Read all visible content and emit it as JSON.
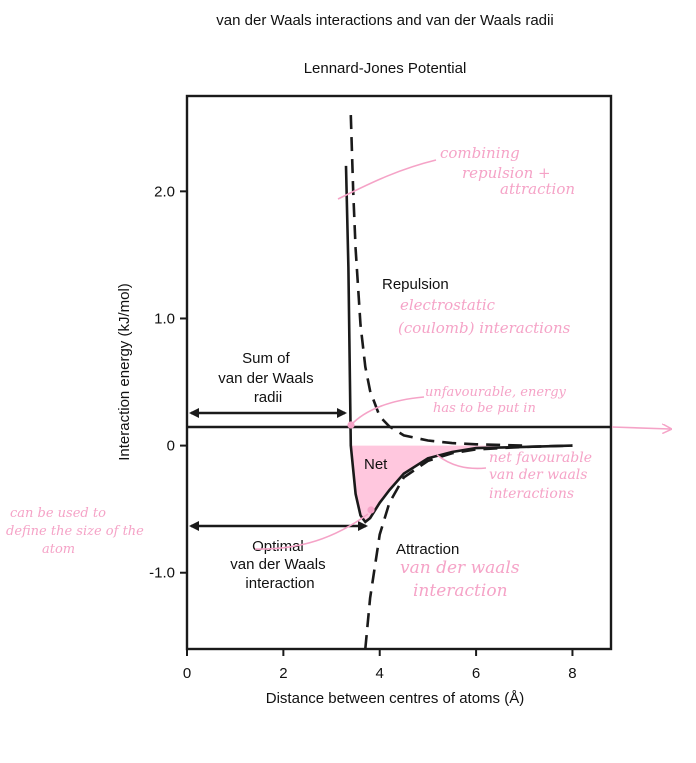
{
  "chart_data": {
    "type": "line",
    "title": "van der Waals interactions and van der Waals radii",
    "subtitle": "Lennard-Jones Potential",
    "xlabel": "Distance between centres of atoms (Å)",
    "ylabel": "Interaction energy (kJ/mol)",
    "xlim": [
      0,
      8.8
    ],
    "ylim": [
      -1.6,
      2.75
    ],
    "xticks": [
      "0",
      "2",
      "4",
      "6",
      "8"
    ],
    "yticks": [
      "-1.0",
      "0",
      "1.0",
      "2.0"
    ],
    "series": [
      {
        "role": "net",
        "style": "solid",
        "x": [
          3.3,
          3.35,
          3.4,
          3.5,
          3.6,
          3.7,
          3.8,
          4.0,
          4.2,
          4.5,
          5.0,
          5.5,
          6.0,
          7.0,
          8.0
        ],
        "y": [
          2.2,
          1.4,
          0.0,
          -0.38,
          -0.55,
          -0.6,
          -0.57,
          -0.45,
          -0.35,
          -0.22,
          -0.1,
          -0.05,
          -0.02,
          -0.01,
          0.0
        ]
      },
      {
        "role": "repulsion",
        "style": "dashed",
        "x": [
          3.4,
          3.45,
          3.5,
          3.6,
          3.7,
          3.8,
          4.0,
          4.2,
          4.5,
          5.0,
          5.5,
          6.0,
          7.0
        ],
        "y": [
          2.6,
          2.0,
          1.55,
          0.95,
          0.62,
          0.43,
          0.23,
          0.15,
          0.08,
          0.04,
          0.02,
          0.01,
          0.0
        ]
      },
      {
        "role": "attraction",
        "style": "dashed",
        "x": [
          3.7,
          3.8,
          4.0,
          4.2,
          4.5,
          5.0,
          5.5,
          6.0,
          7.0,
          8.0
        ],
        "y": [
          -1.6,
          -1.2,
          -0.7,
          -0.45,
          -0.25,
          -0.12,
          -0.06,
          -0.03,
          -0.01,
          0.0
        ]
      }
    ],
    "annotations": {
      "repulsion": "Repulsion",
      "net": "Net",
      "attraction": "Attraction",
      "sum_radii": [
        "Sum of",
        "van der Waals",
        "radii"
      ],
      "optimal": [
        "Optimal",
        "van der Waals",
        "interaction"
      ]
    },
    "handwritten_notes": {
      "combining": [
        "combining",
        "repulsion +",
        "attraction"
      ],
      "electrostatic": [
        "electrostatic",
        "(coulomb) interactions"
      ],
      "unfavourable": [
        "unfavourable, energy",
        "has to be put in"
      ],
      "net_favourable": [
        "net favourable",
        "van der waals",
        "interactions"
      ],
      "vdw": [
        "van der waals",
        "interaction"
      ],
      "size": [
        "can be used to",
        "define the size of the",
        "atom"
      ]
    },
    "colors": {
      "ink": "#1a1a1a",
      "highlight": "#f5a3c7",
      "fill": "#ffc7de"
    }
  }
}
